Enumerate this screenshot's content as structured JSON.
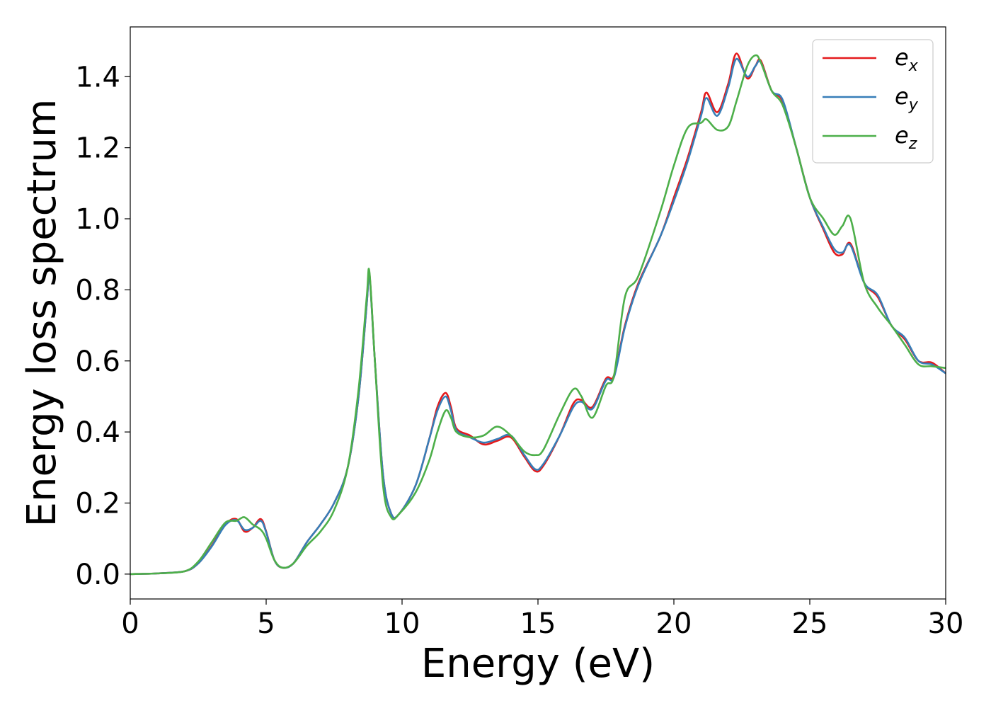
{
  "chart_data": {
    "type": "line",
    "title": "",
    "xlabel": "Energy (eV)",
    "ylabel": "Energy loss spectrum",
    "xlim": [
      0,
      30
    ],
    "ylim": [
      -0.07,
      1.54
    ],
    "xticks": [
      0,
      5,
      10,
      15,
      20,
      25,
      30
    ],
    "yticks": [
      0.0,
      0.2,
      0.4,
      0.6,
      0.8,
      1.0,
      1.2,
      1.4
    ],
    "grid": false,
    "legend_position": "top-right",
    "series": [
      {
        "name": "e_x",
        "label_base": "e",
        "label_sub": "x",
        "color": "#e41a1c",
        "x": [
          0,
          1,
          2,
          2.5,
          3,
          3.5,
          3.9,
          4.2,
          4.5,
          4.8,
          5.0,
          5.3,
          5.6,
          6.0,
          6.5,
          7.0,
          7.5,
          8.0,
          8.4,
          8.7,
          8.8,
          9.0,
          9.3,
          9.6,
          9.9,
          10.5,
          11.0,
          11.3,
          11.6,
          11.8,
          12.0,
          12.5,
          13.0,
          13.5,
          14.0,
          14.5,
          14.9,
          15.2,
          15.8,
          16.3,
          16.6,
          17.0,
          17.5,
          17.8,
          18.2,
          18.7,
          19.5,
          20.0,
          20.5,
          21.0,
          21.2,
          21.6,
          22.0,
          22.3,
          22.7,
          23.0,
          23.2,
          23.6,
          24.0,
          24.5,
          25.0,
          25.5,
          25.9,
          26.2,
          26.5,
          27.0,
          27.5,
          28.0,
          28.5,
          29.0,
          29.5,
          30.0
        ],
        "y": [
          0.0,
          0.002,
          0.008,
          0.03,
          0.08,
          0.14,
          0.155,
          0.12,
          0.13,
          0.155,
          0.12,
          0.04,
          0.018,
          0.03,
          0.09,
          0.14,
          0.2,
          0.3,
          0.5,
          0.76,
          0.845,
          0.6,
          0.28,
          0.17,
          0.17,
          0.25,
          0.38,
          0.47,
          0.51,
          0.47,
          0.41,
          0.39,
          0.365,
          0.375,
          0.385,
          0.33,
          0.29,
          0.305,
          0.39,
          0.48,
          0.49,
          0.47,
          0.55,
          0.56,
          0.7,
          0.82,
          0.95,
          1.06,
          1.17,
          1.3,
          1.355,
          1.3,
          1.38,
          1.465,
          1.395,
          1.43,
          1.445,
          1.36,
          1.33,
          1.2,
          1.06,
          0.97,
          0.905,
          0.9,
          0.93,
          0.82,
          0.78,
          0.7,
          0.66,
          0.6,
          0.595,
          0.565
        ]
      },
      {
        "name": "e_y",
        "label_base": "e",
        "label_sub": "y",
        "color": "#377eb8",
        "x": [
          0,
          1,
          2,
          2.5,
          3,
          3.5,
          3.9,
          4.2,
          4.5,
          4.8,
          5.0,
          5.3,
          5.6,
          6.0,
          6.5,
          7.0,
          7.5,
          8.0,
          8.4,
          8.7,
          8.8,
          9.0,
          9.3,
          9.6,
          9.9,
          10.5,
          11.0,
          11.3,
          11.6,
          11.8,
          12.0,
          12.5,
          13.0,
          13.5,
          14.0,
          14.5,
          14.9,
          15.2,
          15.8,
          16.3,
          16.6,
          17.0,
          17.5,
          17.8,
          18.2,
          18.7,
          19.5,
          20.0,
          20.5,
          21.0,
          21.2,
          21.6,
          22.0,
          22.3,
          22.7,
          23.0,
          23.2,
          23.6,
          24.0,
          24.5,
          25.0,
          25.5,
          25.9,
          26.2,
          26.5,
          27.0,
          27.5,
          28.0,
          28.5,
          29.0,
          29.5,
          30.0
        ],
        "y": [
          0.0,
          0.002,
          0.008,
          0.03,
          0.078,
          0.138,
          0.152,
          0.125,
          0.13,
          0.15,
          0.118,
          0.04,
          0.018,
          0.03,
          0.09,
          0.14,
          0.2,
          0.3,
          0.5,
          0.76,
          0.84,
          0.6,
          0.28,
          0.17,
          0.17,
          0.25,
          0.38,
          0.46,
          0.5,
          0.46,
          0.405,
          0.385,
          0.37,
          0.38,
          0.39,
          0.335,
          0.295,
          0.31,
          0.39,
          0.47,
          0.485,
          0.465,
          0.545,
          0.555,
          0.695,
          0.815,
          0.95,
          1.05,
          1.16,
          1.29,
          1.34,
          1.29,
          1.37,
          1.45,
          1.4,
          1.43,
          1.44,
          1.36,
          1.335,
          1.2,
          1.06,
          0.975,
          0.915,
          0.905,
          0.925,
          0.82,
          0.785,
          0.7,
          0.665,
          0.6,
          0.59,
          0.565
        ]
      },
      {
        "name": "e_z",
        "label_base": "e",
        "label_sub": "z",
        "color": "#4daf4a",
        "x": [
          0,
          1,
          2,
          2.5,
          3,
          3.5,
          3.9,
          4.2,
          4.5,
          4.8,
          5.0,
          5.3,
          5.6,
          6.0,
          6.5,
          7.0,
          7.5,
          8.0,
          8.4,
          8.7,
          8.8,
          9.0,
          9.3,
          9.6,
          9.9,
          10.5,
          11.0,
          11.3,
          11.6,
          11.8,
          12.0,
          12.5,
          13.0,
          13.5,
          14.0,
          14.5,
          14.9,
          15.2,
          15.8,
          16.3,
          16.6,
          17.0,
          17.5,
          17.8,
          18.2,
          18.7,
          19.5,
          20.0,
          20.5,
          21.0,
          21.2,
          21.6,
          22.0,
          22.3,
          22.7,
          23.0,
          23.2,
          23.6,
          24.0,
          24.5,
          25.0,
          25.5,
          25.9,
          26.2,
          26.5,
          27.0,
          27.5,
          28.0,
          28.5,
          29.0,
          29.5,
          30.0
        ],
        "y": [
          0.0,
          0.002,
          0.008,
          0.035,
          0.09,
          0.145,
          0.15,
          0.16,
          0.14,
          0.125,
          0.1,
          0.04,
          0.018,
          0.03,
          0.08,
          0.12,
          0.18,
          0.3,
          0.52,
          0.78,
          0.85,
          0.6,
          0.25,
          0.16,
          0.17,
          0.23,
          0.32,
          0.4,
          0.46,
          0.44,
          0.4,
          0.385,
          0.39,
          0.415,
          0.39,
          0.345,
          0.335,
          0.35,
          0.45,
          0.52,
          0.5,
          0.44,
          0.53,
          0.56,
          0.78,
          0.84,
          1.02,
          1.15,
          1.255,
          1.27,
          1.28,
          1.25,
          1.26,
          1.33,
          1.43,
          1.46,
          1.44,
          1.36,
          1.32,
          1.2,
          1.06,
          1.0,
          0.955,
          0.98,
          1.0,
          0.82,
          0.75,
          0.7,
          0.645,
          0.59,
          0.585,
          0.58
        ]
      }
    ]
  }
}
